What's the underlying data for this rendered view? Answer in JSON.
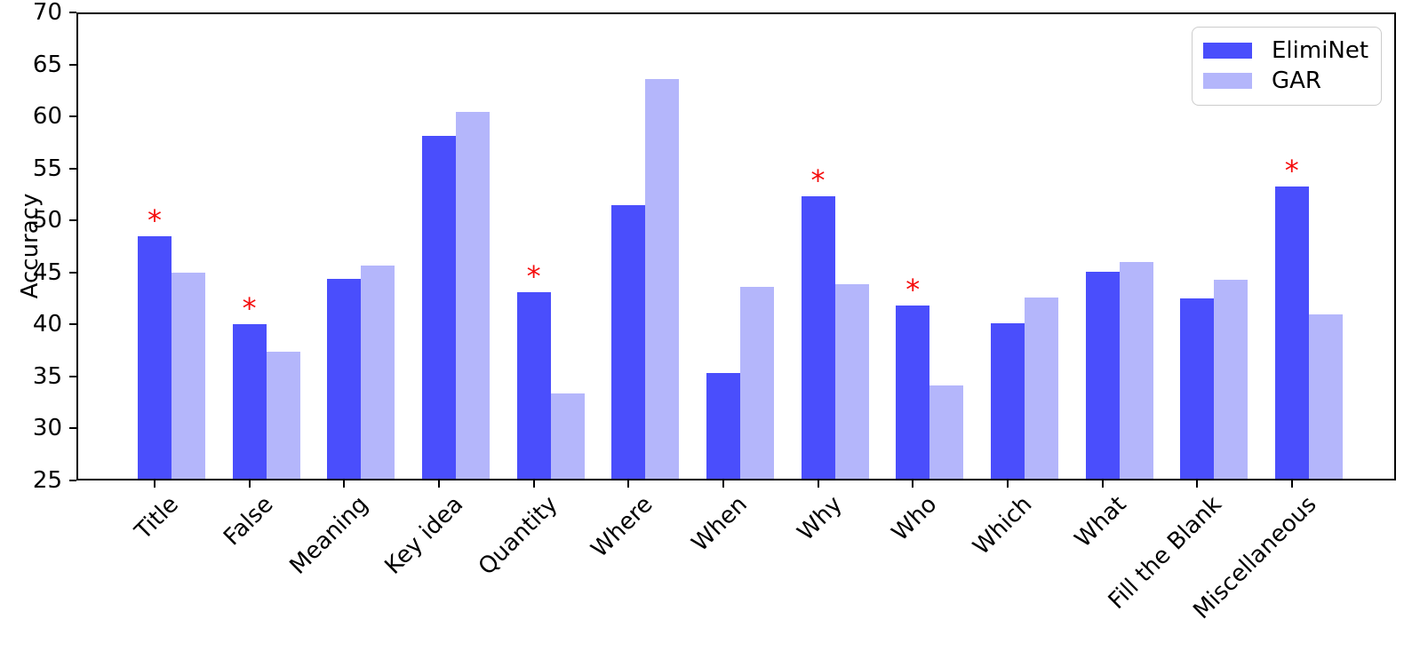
{
  "chart_data": {
    "type": "bar",
    "title": "",
    "xlabel": "",
    "ylabel": "Accuracy",
    "ylim": [
      25,
      70
    ],
    "yticks": [
      25,
      30,
      35,
      40,
      45,
      50,
      55,
      60,
      65,
      70
    ],
    "grid": false,
    "legend_position": "upper right",
    "categories": [
      "Title",
      "False",
      "Meaning",
      "Key idea",
      "Quantity",
      "Where",
      "When",
      "Why",
      "Who",
      "Which",
      "What",
      "Fill the Blank",
      "Miscellaneous"
    ],
    "series": [
      {
        "name": "ElimiNet",
        "color": "#4a4efc",
        "values": [
          48.5,
          40.0,
          44.4,
          58.1,
          43.1,
          51.5,
          35.3,
          52.3,
          41.8,
          40.1,
          45.1,
          42.5,
          53.3
        ]
      },
      {
        "name": "GAR",
        "color": "#b4b6fb",
        "values": [
          45.0,
          37.4,
          45.7,
          60.4,
          33.4,
          63.6,
          43.6,
          43.9,
          34.1,
          42.6,
          46.0,
          44.3,
          41.0
        ]
      }
    ],
    "significance_marker": {
      "symbol": "*",
      "color": "#f50d0d",
      "starred_categories": [
        "Title",
        "False",
        "Quantity",
        "Why",
        "Who",
        "Miscellaneous"
      ],
      "starred_series": "ElimiNet"
    }
  }
}
